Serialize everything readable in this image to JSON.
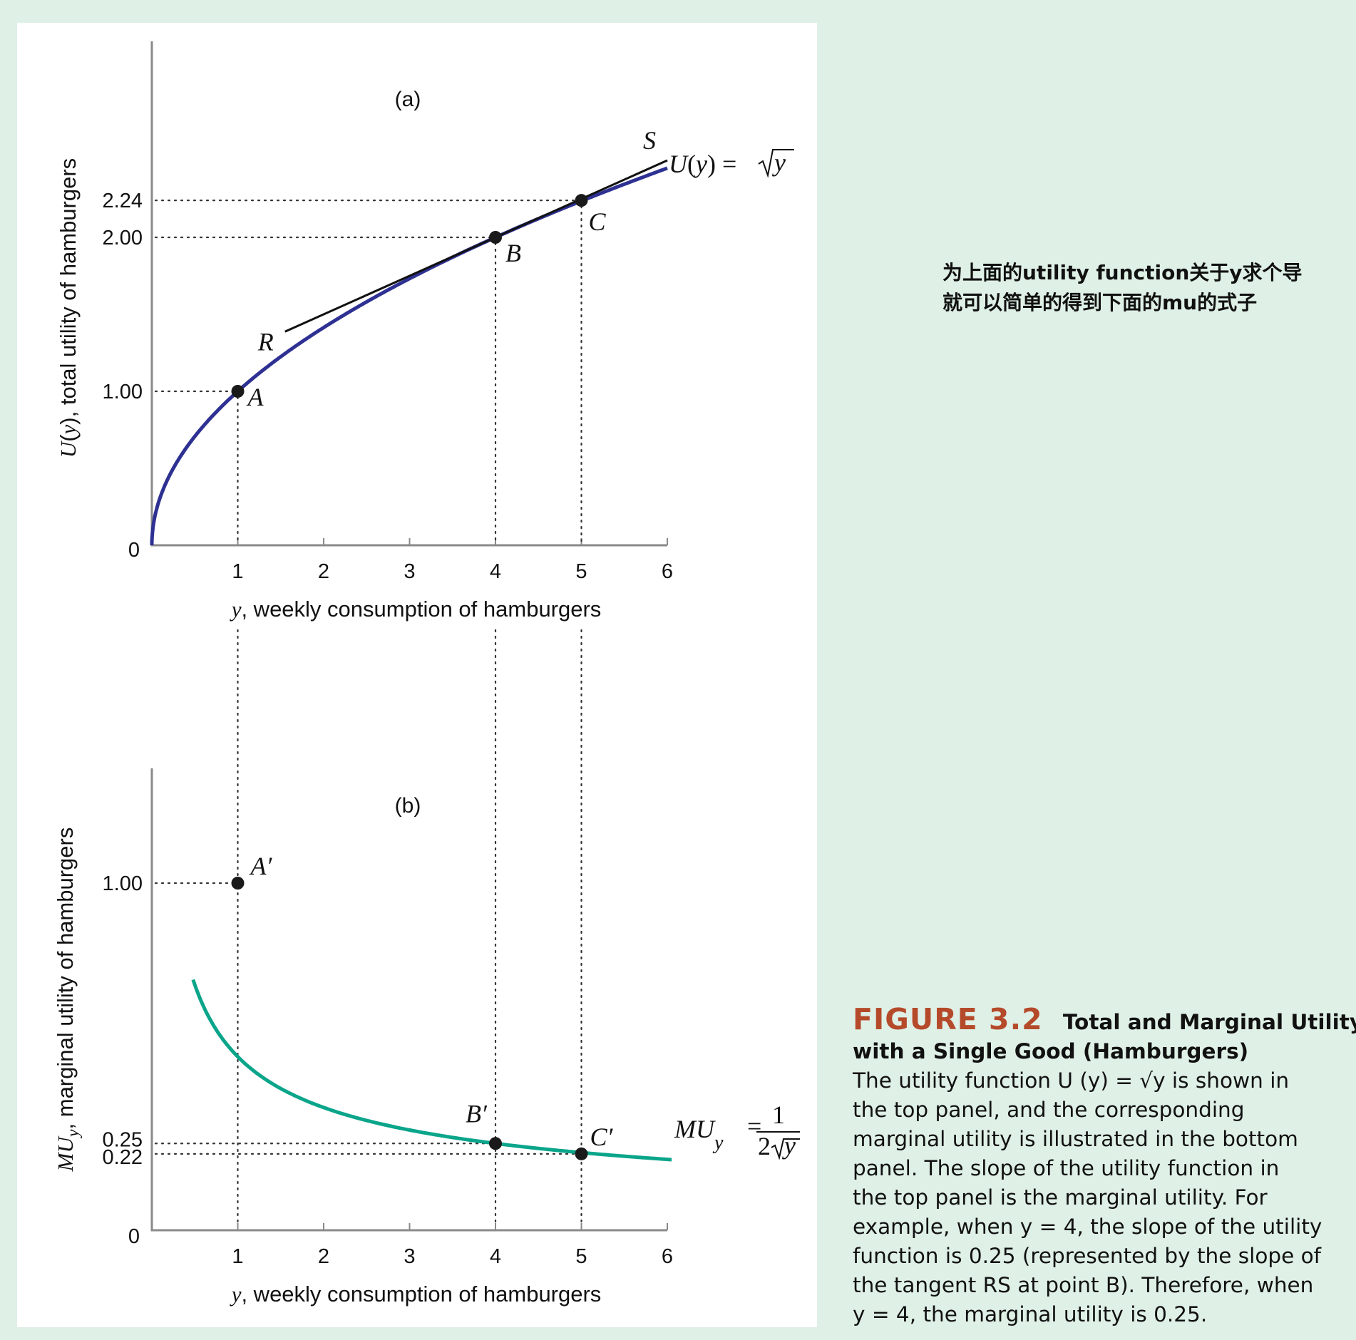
{
  "chart_data": [
    {
      "type": "line",
      "panel_label": "(a)",
      "function": "U(y) = √y",
      "curve_label": {
        "lhs": "U(y) = ",
        "rhs": "y"
      },
      "series": [
        {
          "values_of": "sqrt(y)",
          "color": "#2e3192"
        }
      ],
      "xlabel": "y, weekly consumption of hamburgers",
      "ylabel": "U(y), total utility of hamburgers",
      "x_ticks": [
        "0",
        "1",
        "2",
        "3",
        "4",
        "5",
        "6"
      ],
      "y_ticks": [
        "1.00",
        "2.00",
        "2.24"
      ],
      "xlim": [
        0,
        6
      ],
      "ylim": [
        0,
        2.9
      ],
      "points": [
        {
          "label": "A",
          "x": 1,
          "y": 1.0
        },
        {
          "label": "B",
          "x": 4,
          "y": 2.0
        },
        {
          "label": "C",
          "x": 5,
          "y": 2.24
        }
      ],
      "tangent": {
        "at": "B",
        "slope": 0.25,
        "x_range": [
          1.55,
          6.0
        ],
        "start_label": "R",
        "end_label": "S"
      }
    },
    {
      "type": "line",
      "panel_label": "(b)",
      "function": "MU_y = 1/(2√y)",
      "curve_label": {
        "lhs": "MU",
        "sub": "y",
        "num": "1",
        "den": "2"
      },
      "series": [
        {
          "values_of": "1/(2*sqrt(y))",
          "color": "#0aa58a"
        }
      ],
      "xlabel": "y, weekly consumption of hamburgers",
      "ylabel": "MU_y, marginal utility of hamburgers",
      "ylabel_parts": {
        "main": "MU",
        "sub": "y",
        "rest": ", marginal utility of hamburgers"
      },
      "x_ticks": [
        "0",
        "1",
        "2",
        "3",
        "4",
        "5",
        "6"
      ],
      "y_ticks": [
        "0.22",
        "0.25",
        "1.00"
      ],
      "xlim": [
        0,
        6
      ],
      "ylim": [
        0,
        1.32
      ],
      "points": [
        {
          "label": "A′",
          "x": 1,
          "y": 1.0
        },
        {
          "label": "B′",
          "x": 4,
          "y": 0.25
        },
        {
          "label": "C′",
          "x": 5,
          "y": 0.22
        }
      ]
    }
  ],
  "note": {
    "line1": "为上面的utility function关于y求个导",
    "line2": "就可以简单的得到下面的mu的式子"
  },
  "caption": {
    "fig_number": "FIGURE 3.2",
    "fig_title_1": "Total and Marginal Utility",
    "fig_title_2": "with a Single Good (Hamburgers)",
    "lines": [
      "The utility function U (y) = √y is shown in",
      "the top panel, and the corresponding",
      "marginal utility is illustrated in the bottom",
      "panel. The slope of the utility function in",
      "the top panel is the marginal utility. For",
      "example, when y = 4, the slope of the utility",
      "function is 0.25 (represented by the slope of",
      "the tangent RS at point B). Therefore, when",
      "y = 4, the marginal utility is 0.25."
    ]
  }
}
